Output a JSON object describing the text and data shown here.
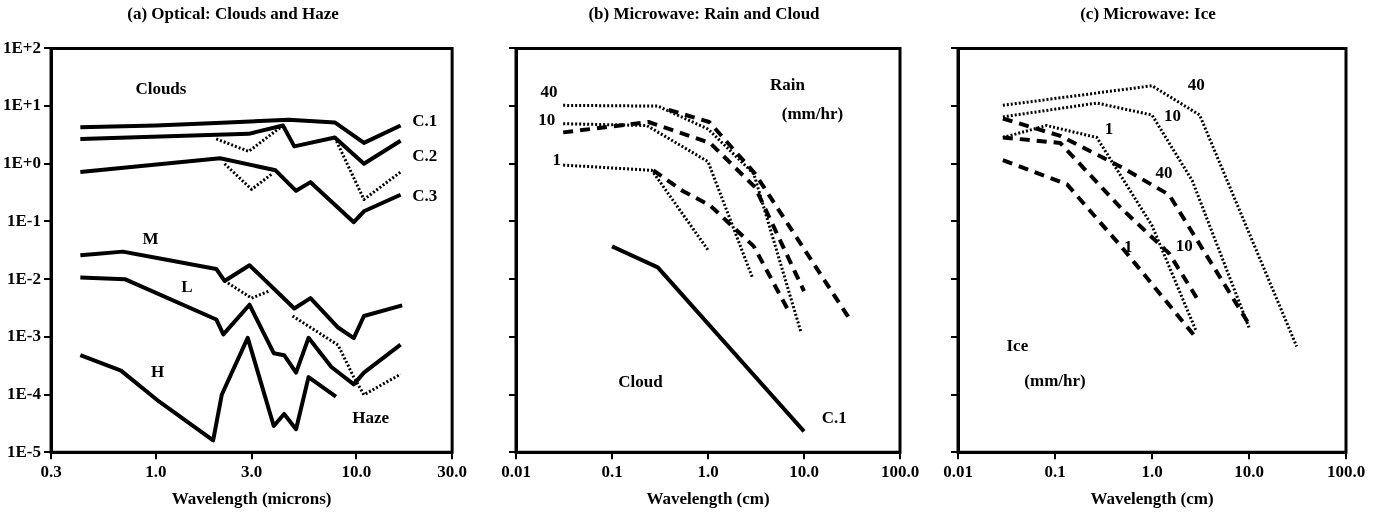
{
  "chart_data": [
    {
      "type": "line",
      "title": "(a) Optical: Clouds and Haze",
      "xlabel": "Wavelength (microns)",
      "log": "xy",
      "grid": false,
      "legend": false,
      "marker": "none",
      "xlim": [
        0.3,
        30
      ],
      "xticks": [
        {
          "value": 0.3,
          "label": "0.3"
        },
        {
          "value": 1,
          "label": "1.0"
        },
        {
          "value": 3,
          "label": "3.0"
        },
        {
          "value": 10,
          "label": "10.0"
        },
        {
          "value": 30,
          "label": "30.0"
        }
      ],
      "ylim": [
        1e-05,
        100
      ],
      "yticks": [
        {
          "value": 1e-05,
          "label": "1E-5"
        },
        {
          "value": 0.0001,
          "label": "1E-4"
        },
        {
          "value": 0.001,
          "label": "1E-3"
        },
        {
          "value": 0.01,
          "label": "1E-2"
        },
        {
          "value": 0.1,
          "label": "1E-1"
        },
        {
          "value": 1,
          "label": "1E+0"
        },
        {
          "value": 10,
          "label": "1E+1"
        },
        {
          "value": 100,
          "label": "1E+2"
        }
      ],
      "series": [
        {
          "color": "#000000",
          "line_style": "solid",
          "x": [
            0.42,
            1.0,
            2.0,
            4.6,
            7.8,
            10.9,
            16.6
          ],
          "values": [
            4.3,
            4.6,
            5.1,
            5.8,
            5.2,
            2.3,
            4.6
          ]
        },
        {
          "color": "#000000",
          "line_style": "solid",
          "x": [
            0.42,
            2.9,
            4.3,
            4.9,
            7.8,
            10.9,
            16.6
          ],
          "values": [
            2.7,
            3.3,
            4.6,
            2.0,
            2.85,
            1.0,
            2.5
          ]
        },
        {
          "color": "#000000",
          "line_style": "dotted",
          "x": [
            2.0,
            2.9,
            4.3
          ],
          "values": [
            2.7,
            1.64,
            4.6
          ]
        },
        {
          "color": "#000000",
          "line_style": "dotted",
          "x": [
            7.8,
            10.9,
            16.6
          ],
          "values": [
            2.85,
            0.24,
            0.72
          ]
        },
        {
          "color": "#000000",
          "line_style": "solid",
          "x": [
            0.42,
            2.09,
            3.95,
            5.0,
            5.9,
            9.7,
            10.9,
            16.6
          ],
          "values": [
            0.72,
            1.25,
            0.77,
            0.34,
            0.48,
            0.097,
            0.15,
            0.29
          ]
        },
        {
          "color": "#000000",
          "line_style": "dotted",
          "x": [
            2.2,
            3.0,
            3.8
          ],
          "values": [
            1.0,
            0.36,
            0.67
          ]
        },
        {
          "color": "#000000",
          "line_style": "solid",
          "x": [
            0.42,
            0.685,
            2.0,
            2.2,
            2.93,
            4.9,
            5.9,
            8.1,
            9.7,
            10.9,
            16.9
          ],
          "values": [
            0.026,
            0.03,
            0.015,
            0.0093,
            0.0174,
            0.0031,
            0.0047,
            0.00145,
            0.00095,
            0.0023,
            0.0035
          ]
        },
        {
          "color": "#000000",
          "line_style": "dotted",
          "x": [
            2.2,
            3.0,
            3.65
          ],
          "values": [
            0.0093,
            0.0047,
            0.0062
          ]
        },
        {
          "color": "#000000",
          "line_style": "solid",
          "x": [
            0.42,
            0.7,
            2.0,
            2.17,
            2.93,
            3.87,
            4.36,
            5.0,
            5.77,
            7.5,
            9.7,
            10.9,
            16.6
          ],
          "values": [
            0.0107,
            0.01,
            0.002,
            0.0011,
            0.0036,
            0.00052,
            0.00048,
            0.00024,
            0.00096,
            0.0003,
            0.00015,
            0.00024,
            0.00073
          ]
        },
        {
          "color": "#000000",
          "line_style": "dotted",
          "x": [
            4.8,
            8.1,
            9.7,
            10.9,
            16.6
          ],
          "values": [
            0.0023,
            0.00072,
            0.0002,
            9.9e-05,
            0.000225
          ]
        },
        {
          "color": "#000000",
          "line_style": "solid",
          "x": [
            0.42,
            0.67,
            1.04,
            1.93,
            2.13,
            2.87,
            3.87,
            4.36,
            5.0,
            5.77,
            7.9
          ],
          "values": [
            0.00048,
            0.00026,
            7.5e-05,
            1.6e-05,
            9.9e-05,
            0.00096,
            2.85e-05,
            4.6e-05,
            2.5e-05,
            0.0002,
            9.2e-05
          ]
        }
      ],
      "annotations": [
        "Clouds",
        "C.1",
        "C.2",
        "C.3",
        "M",
        "L",
        "H",
        "Haze"
      ]
    },
    {
      "type": "line",
      "title": "(b) Microwave: Rain and Cloud",
      "xlabel": "Wavelength (cm)",
      "log": "xy",
      "grid": false,
      "legend": false,
      "marker": "none",
      "tick_labels": "x",
      "xlim": [
        0.01,
        100
      ],
      "xticks": [
        {
          "value": 0.01,
          "label": "0.01"
        },
        {
          "value": 0.1,
          "label": "0.1"
        },
        {
          "value": 1,
          "label": "1.0"
        },
        {
          "value": 10,
          "label": "10.0"
        },
        {
          "value": 100,
          "label": "100.0"
        }
      ],
      "ylim": [
        1e-05,
        100
      ],
      "yticks": [
        {
          "value": 1e-05,
          "label": null
        },
        {
          "value": 0.0001,
          "label": null
        },
        {
          "value": 0.001,
          "label": null
        },
        {
          "value": 0.01,
          "label": null
        },
        {
          "value": 0.1,
          "label": null
        },
        {
          "value": 1,
          "label": null
        },
        {
          "value": 10,
          "label": null
        },
        {
          "value": 100,
          "label": null
        }
      ],
      "series": [
        {
          "color": "#000000",
          "line_style": "solid",
          "x": [
            0.1,
            0.3,
            10
          ],
          "values": [
            0.037,
            0.016,
            2.3e-05
          ]
        },
        {
          "color": "#000000",
          "line_style": "dotted",
          "x": [
            0.031,
            0.3,
            1.0,
            3.0,
            9.3
          ],
          "values": [
            10.3,
            10,
            4.0,
            0.67,
            0.0012
          ]
        },
        {
          "color": "#000000",
          "line_style": "dotted",
          "x": [
            0.031,
            0.23,
            1.0,
            2.9
          ],
          "values": [
            4.95,
            4.6,
            1.09,
            0.0107
          ]
        },
        {
          "color": "#000000",
          "line_style": "dotted",
          "x": [
            0.031,
            0.26,
            1.0
          ],
          "values": [
            0.95,
            0.77,
            0.032
          ]
        },
        {
          "color": "#000000",
          "line_style": "dashed",
          "x": [
            0.39,
            1.03,
            3.1,
            29.8
          ],
          "values": [
            8.6,
            5.3,
            0.67,
            0.00205
          ]
        },
        {
          "color": "#000000",
          "line_style": "dashed",
          "x": [
            0.031,
            0.24,
            1.05,
            3.1,
            10
          ],
          "values": [
            3.5,
            5.3,
            2.3,
            0.39,
            0.0062
          ]
        },
        {
          "color": "#000000",
          "line_style": "dashed",
          "x": [
            0.27,
            0.54,
            1.05,
            3.0,
            7.0
          ],
          "values": [
            0.77,
            0.34,
            0.19,
            0.037,
            0.0027
          ]
        }
      ],
      "annotations": [
        "40",
        "10",
        "1",
        "Rain",
        "(mm/hr)",
        "Cloud",
        "C.1"
      ]
    },
    {
      "type": "line",
      "title": "(c) Microwave: Ice",
      "xlabel": "Wavelength (cm)",
      "log": "xy",
      "grid": false,
      "legend": false,
      "marker": "none",
      "tick_labels": "x",
      "xlim": [
        0.01,
        100
      ],
      "xticks": [
        {
          "value": 0.01,
          "label": "0.01"
        },
        {
          "value": 0.1,
          "label": "0.1"
        },
        {
          "value": 1,
          "label": "1.0"
        },
        {
          "value": 10,
          "label": "10.0"
        },
        {
          "value": 100,
          "label": "100.0"
        }
      ],
      "ylim": [
        1e-05,
        100
      ],
      "yticks": [
        {
          "value": 1e-05,
          "label": null
        },
        {
          "value": 0.0001,
          "label": null
        },
        {
          "value": 0.001,
          "label": null
        },
        {
          "value": 0.01,
          "label": null
        },
        {
          "value": 0.1,
          "label": null
        },
        {
          "value": 1,
          "label": null
        },
        {
          "value": 10,
          "label": null
        },
        {
          "value": 100,
          "label": null
        }
      ],
      "series": [
        {
          "color": "#000000",
          "line_style": "dotted",
          "x": [
            0.029,
            1.0,
            3.1,
            31
          ],
          "values": [
            10.3,
            22.5,
            7.0,
            0.00068
          ]
        },
        {
          "color": "#000000",
          "line_style": "dotted",
          "x": [
            0.029,
            0.27,
            1.0,
            2.6,
            10
          ],
          "values": [
            6.5,
            11.3,
            7.0,
            0.51,
            0.00145
          ]
        },
        {
          "color": "#000000",
          "line_style": "dotted",
          "x": [
            0.029,
            0.082,
            0.27,
            1.0,
            2.85
          ],
          "values": [
            2.85,
            4.6,
            2.85,
            0.085,
            0.00126
          ]
        },
        {
          "color": "#000000",
          "line_style": "dashed",
          "x": [
            0.029,
            0.113,
            0.48,
            1.5,
            10.5
          ],
          "values": [
            6.1,
            3.05,
            0.88,
            0.29,
            0.00145
          ]
        },
        {
          "color": "#000000",
          "line_style": "dashed",
          "x": [
            0.029,
            0.113,
            0.48,
            1.5,
            2.9
          ],
          "values": [
            2.85,
            2.3,
            0.17,
            0.028,
            0.0047
          ]
        },
        {
          "color": "#000000",
          "line_style": "dashed",
          "x": [
            0.029,
            0.133,
            0.48,
            2.85
          ],
          "values": [
            1.16,
            0.44,
            0.037,
            0.00096
          ]
        }
      ],
      "annotations": [
        "40",
        "10",
        "1",
        "40",
        "10",
        "1",
        "Ice",
        "(mm/hr)"
      ]
    }
  ]
}
